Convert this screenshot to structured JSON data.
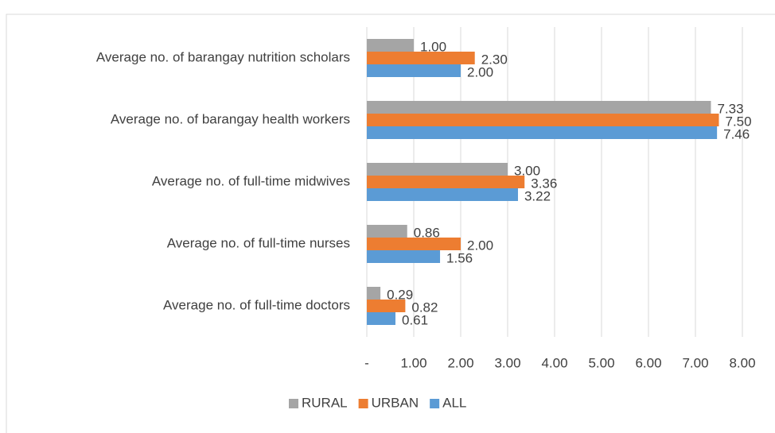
{
  "chart_data": {
    "type": "hbar",
    "categories": [
      "Average no. of barangay nutrition scholars",
      "Average no. of barangay health workers",
      "Average no. of full-time midwives",
      "Average no. of full-time nurses",
      "Average no. of full-time doctors"
    ],
    "series": [
      {
        "name": "RURAL",
        "color": "#a5a5a5",
        "values": [
          1.0,
          7.33,
          3.0,
          0.86,
          0.29
        ],
        "value_labels": [
          "1.00",
          "7.33",
          "3.00",
          "0.86",
          "0.29"
        ]
      },
      {
        "name": "URBAN",
        "color": "#ed7d31",
        "values": [
          2.3,
          7.5,
          3.36,
          2.0,
          0.82
        ],
        "value_labels": [
          "2.30",
          "7.50",
          "3.36",
          "2.00",
          "0.82"
        ]
      },
      {
        "name": "ALL",
        "color": "#5b9bd5",
        "values": [
          2.0,
          7.46,
          3.22,
          1.56,
          0.61
        ],
        "value_labels": [
          "2.00",
          "7.46",
          "3.22",
          "1.56",
          "0.61"
        ]
      }
    ],
    "xlim": [
      0,
      8
    ],
    "xticks": [
      {
        "value": 0,
        "label": "-"
      },
      {
        "value": 1,
        "label": "1.00"
      },
      {
        "value": 2,
        "label": "2.00"
      },
      {
        "value": 3,
        "label": "3.00"
      },
      {
        "value": 4,
        "label": "4.00"
      },
      {
        "value": 5,
        "label": "5.00"
      },
      {
        "value": 6,
        "label": "6.00"
      },
      {
        "value": 7,
        "label": "7.00"
      },
      {
        "value": 8,
        "label": "8.00"
      }
    ],
    "grid": true,
    "legend": "bottom"
  }
}
